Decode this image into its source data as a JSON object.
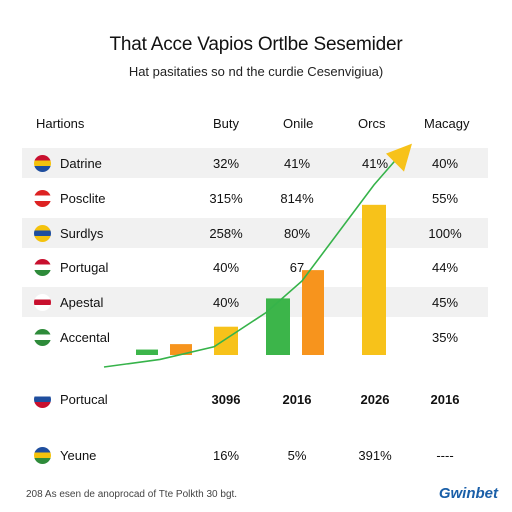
{
  "title": "That Acce Vapios Ortlbe Sesemider",
  "subtitle": "Hat pasitaties so nd the curdie Cesenvigiua)",
  "headers": [
    "Hartions",
    "Buty",
    "Onile",
    "Orcs",
    "Macagy"
  ],
  "rows": [
    {
      "name": "Datrine",
      "c1": "32%",
      "c2": "41%",
      "c3": "41%",
      "c4": "40%",
      "flag": [
        "#c8102e",
        "#f4c20d",
        "#1f4e9e"
      ]
    },
    {
      "name": "Posclite",
      "c1": "315%",
      "c2": "814%",
      "c3": "",
      "c4": "55%",
      "flag": [
        "#dd2222",
        "#ffffff",
        "#dd2222"
      ]
    },
    {
      "name": "Surdlys",
      "c1": "258%",
      "c2": "80%",
      "c3": "",
      "c4": "100%",
      "flag": [
        "#f4c20d",
        "#1f4e9e",
        "#f4c20d"
      ]
    },
    {
      "name": "Portugal",
      "c1": "40%",
      "c2": "67",
      "c3": "",
      "c4": "44%",
      "flag": [
        "#c8102e",
        "#ffffff",
        "#2e8b3a"
      ]
    },
    {
      "name": "Apestal",
      "c1": "40%",
      "c2": "",
      "c3": "",
      "c4": "45%",
      "flag": [
        "#ffffff",
        "#c8102e",
        "#ffffff"
      ]
    },
    {
      "name": "Accental",
      "c1": "",
      "c2": "",
      "c3": "",
      "c4": "35%",
      "flag": [
        "#2e8b3a",
        "#ffffff",
        "#2e8b3a"
      ]
    }
  ],
  "year_row": {
    "name": "Portucal",
    "c1": "3096",
    "c2": "2016",
    "c3": "2026",
    "c4": "2016",
    "flag": [
      "#ffffff",
      "#1f4e9e",
      "#c8102e"
    ]
  },
  "last_row": {
    "name": "Yeune",
    "c1": "16%",
    "c2": "5%",
    "c3": "391%",
    "c4": "----",
    "flag": [
      "#1f4e9e",
      "#f4c20d",
      "#2e8b3a"
    ]
  },
  "footer": "208 As esen de anoprocad of Tte Polkth 30 bgt.",
  "logo": "Gwinbet",
  "colors": {
    "line": "#36b34a",
    "arrow": "#f7c21a",
    "shade": "#f1f1f1"
  },
  "chart_data": {
    "type": "bar",
    "values": [
      0.5,
      1.0,
      2.6,
      5.2,
      7.8,
      13.8
    ],
    "colors": [
      "#3cb54a",
      "#f7941d",
      "#f7c21a",
      "#3cb54a",
      "#f7941d",
      "#f7c21a"
    ],
    "trend_line": [
      0.0,
      0.6,
      1.6,
      4.3,
      6.8,
      14.4,
      16.4
    ],
    "ylim": [
      0,
      17
    ],
    "title": "",
    "xlabel": "",
    "ylabel": ""
  }
}
